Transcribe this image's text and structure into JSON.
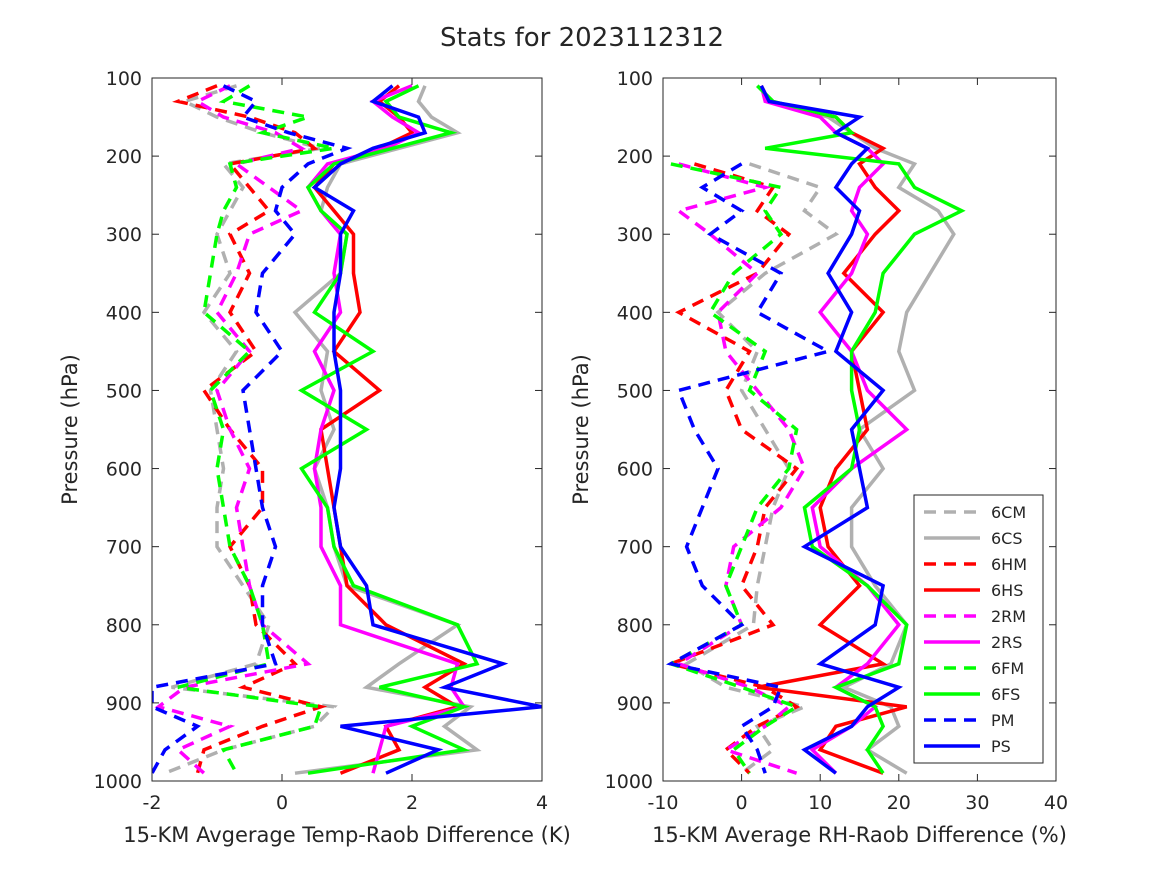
{
  "title": "Stats for 2023112312",
  "series_styles": [
    {
      "name": "6CM",
      "color": "#b0b0b0",
      "dashed": true
    },
    {
      "name": "6CS",
      "color": "#b0b0b0",
      "dashed": false
    },
    {
      "name": "6HM",
      "color": "#ff0000",
      "dashed": true
    },
    {
      "name": "6HS",
      "color": "#ff0000",
      "dashed": false
    },
    {
      "name": "2RM",
      "color": "#ff00ff",
      "dashed": true
    },
    {
      "name": "2RS",
      "color": "#ff00ff",
      "dashed": false
    },
    {
      "name": "6FM",
      "color": "#00ff00",
      "dashed": true
    },
    {
      "name": "6FS",
      "color": "#00ff00",
      "dashed": false
    },
    {
      "name": "PM",
      "color": "#0000ff",
      "dashed": true
    },
    {
      "name": "PS",
      "color": "#0000ff",
      "dashed": false
    }
  ],
  "chart_data": [
    {
      "type": "line",
      "xlabel": "15-KM Avgerage Temp-Raob Difference (K)",
      "ylabel": "Pressure (hPa)",
      "xlim": [
        -2,
        4
      ],
      "ylim": [
        100,
        1000
      ],
      "y_reversed": true,
      "xticks": [
        -2,
        0,
        2,
        4
      ],
      "yticks": [
        100,
        200,
        300,
        400,
        500,
        600,
        700,
        800,
        900,
        1000
      ],
      "grid": false,
      "legend": "none",
      "pressure": [
        110,
        130,
        150,
        170,
        190,
        210,
        240,
        270,
        300,
        350,
        400,
        450,
        500,
        550,
        600,
        650,
        700,
        750,
        800,
        850,
        880,
        905,
        930,
        960,
        990
      ],
      "series": [
        {
          "name": "6CM",
          "values": [
            -0.7,
            -1.5,
            -1.0,
            -0.3,
            0.6,
            -0.9,
            -0.6,
            -0.8,
            -1.0,
            -0.8,
            -1.2,
            -0.7,
            -1.1,
            -1.0,
            -0.9,
            -1.0,
            -1.0,
            -0.6,
            -0.2,
            -0.4,
            -1.7,
            0.8,
            0.5,
            -0.9,
            -1.8
          ]
        },
        {
          "name": "6CS",
          "values": [
            2.2,
            2.1,
            2.3,
            2.7,
            1.8,
            0.9,
            0.7,
            0.6,
            1.0,
            0.9,
            0.2,
            0.7,
            0.6,
            0.8,
            0.5,
            0.7,
            0.8,
            1.0,
            2.7,
            1.8,
            1.3,
            2.9,
            2.5,
            3.0,
            0.2
          ]
        },
        {
          "name": "6HM",
          "values": [
            -1.0,
            -1.6,
            -0.5,
            0.2,
            0.5,
            -0.8,
            -0.5,
            -0.2,
            -0.8,
            -0.5,
            -0.8,
            -0.4,
            -1.2,
            -0.8,
            -0.3,
            -0.3,
            -0.8,
            -0.5,
            -0.4,
            0.2,
            -0.6,
            0.6,
            -0.3,
            -1.2,
            -1.3
          ]
        },
        {
          "name": "6HS",
          "values": [
            1.8,
            1.5,
            1.8,
            2.0,
            1.5,
            0.8,
            0.5,
            0.8,
            1.1,
            1.1,
            1.2,
            0.8,
            1.5,
            0.6,
            0.7,
            0.8,
            0.9,
            1.0,
            1.6,
            2.8,
            2.2,
            2.7,
            1.6,
            1.8,
            0.9
          ]
        },
        {
          "name": "2RM",
          "values": [
            -0.8,
            -1.3,
            -0.9,
            -0.1,
            0.3,
            -0.7,
            -0.2,
            0.3,
            -0.5,
            -0.7,
            -1.0,
            -0.5,
            -1.0,
            -0.8,
            -0.5,
            -0.7,
            -0.6,
            -0.5,
            -0.3,
            0.4,
            -1.5,
            -1.9,
            -0.8,
            -1.6,
            -1.2
          ]
        },
        {
          "name": "2RS",
          "values": [
            2.0,
            1.4,
            1.7,
            2.1,
            1.6,
            0.7,
            0.4,
            0.6,
            0.9,
            0.8,
            0.9,
            0.5,
            0.8,
            0.6,
            0.5,
            0.6,
            0.6,
            0.9,
            0.9,
            2.7,
            2.6,
            2.8,
            1.6,
            1.5,
            1.4
          ]
        },
        {
          "name": "6FM",
          "values": [
            -0.5,
            -0.9,
            0.4,
            -0.3,
            0.8,
            -0.8,
            -0.7,
            -0.9,
            -1.0,
            -1.1,
            -1.2,
            -0.5,
            -1.1,
            -0.9,
            -1.0,
            -0.9,
            -0.8,
            -0.5,
            -0.3,
            -0.2,
            -1.6,
            0.6,
            0.5,
            -0.9,
            -0.7
          ]
        },
        {
          "name": "6FS",
          "values": [
            2.1,
            1.6,
            1.8,
            2.6,
            1.7,
            0.8,
            0.4,
            0.6,
            1.0,
            0.9,
            0.5,
            1.4,
            0.3,
            1.3,
            0.3,
            0.7,
            0.8,
            1.1,
            2.7,
            3.0,
            1.5,
            2.8,
            2.0,
            2.8,
            0.4
          ]
        },
        {
          "name": "PM",
          "values": [
            -0.9,
            -0.4,
            -0.6,
            0.1,
            1.0,
            0.4,
            0.0,
            -0.1,
            0.2,
            -0.3,
            -0.4,
            0.0,
            -0.6,
            -0.5,
            -0.4,
            -0.3,
            -0.1,
            -0.3,
            -0.3,
            -0.1,
            -2.0,
            -2.0,
            -1.3,
            -1.8,
            -2.0
          ]
        },
        {
          "name": "PS",
          "values": [
            1.7,
            1.4,
            2.1,
            2.2,
            1.4,
            0.9,
            0.5,
            1.1,
            0.9,
            0.9,
            0.8,
            0.8,
            0.9,
            0.9,
            0.9,
            0.8,
            0.9,
            1.3,
            1.4,
            3.4,
            2.5,
            4.0,
            0.9,
            2.4,
            1.6
          ]
        }
      ]
    },
    {
      "type": "line",
      "xlabel": "15-KM Average RH-Raob Difference (%)",
      "ylabel": "Pressure (hPa)",
      "xlim": [
        -10,
        40
      ],
      "ylim": [
        100,
        1000
      ],
      "y_reversed": true,
      "xticks": [
        -10,
        0,
        10,
        20,
        30,
        40
      ],
      "yticks": [
        100,
        200,
        300,
        400,
        500,
        600,
        700,
        800,
        900,
        1000
      ],
      "grid": false,
      "legend": "bottom-right",
      "pressure": [
        110,
        130,
        150,
        170,
        190,
        210,
        240,
        270,
        300,
        350,
        400,
        450,
        500,
        550,
        600,
        650,
        700,
        750,
        800,
        850,
        880,
        905,
        930,
        960,
        990
      ],
      "series": [
        {
          "name": "6CM",
          "values": [
            -7.0,
            null,
            null,
            null,
            null,
            1.0,
            10.0,
            8.0,
            12.0,
            3.0,
            -3.0,
            2.0,
            0.0,
            3.0,
            6.0,
            4.0,
            3.0,
            2.0,
            1.5,
            -7.0,
            -2.0,
            8.0,
            2.0,
            4.0,
            0.0
          ]
        },
        {
          "name": "6CS",
          "values": [
            2.0,
            4.0,
            11.0,
            14.0,
            17.0,
            22.0,
            20.0,
            25.0,
            27.0,
            24.0,
            21.0,
            20.0,
            22.0,
            15.0,
            18.0,
            14.0,
            14.0,
            17.0,
            21.0,
            19.0,
            13.0,
            19.0,
            20.0,
            16.0,
            21.0
          ]
        },
        {
          "name": "6HM",
          "values": [
            -8.0,
            null,
            null,
            null,
            null,
            -6.0,
            4.0,
            2.0,
            6.0,
            2.0,
            -8.0,
            1.0,
            -2.0,
            0.0,
            7.0,
            3.0,
            2.0,
            0.0,
            4.0,
            -9.0,
            3.0,
            7.0,
            2.0,
            -2.0,
            1.0
          ]
        },
        {
          "name": "6HS",
          "values": [
            2.5,
            3.5,
            12.0,
            14.0,
            18.0,
            15.0,
            17.0,
            20.0,
            17.0,
            13.0,
            18.0,
            14.0,
            15.0,
            16.0,
            12.0,
            10.0,
            11.0,
            15.0,
            10.0,
            18.0,
            2.0,
            21.0,
            12.0,
            10.0,
            18.0
          ]
        },
        {
          "name": "2RM",
          "values": [
            -7.0,
            null,
            null,
            null,
            null,
            -8.0,
            3.0,
            -8.0,
            -4.0,
            2.0,
            -3.0,
            -2.0,
            2.0,
            6.0,
            8.0,
            5.0,
            -1.0,
            -2.0,
            0.0,
            -8.0,
            1.0,
            6.0,
            3.0,
            -2.0,
            7.0
          ]
        },
        {
          "name": "2RS",
          "values": [
            2.5,
            3.0,
            10.0,
            12.0,
            16.0,
            18.0,
            15.0,
            14.0,
            16.0,
            14.0,
            10.0,
            14.0,
            16.0,
            21.0,
            14.0,
            9.0,
            10.0,
            16.0,
            20.0,
            16.0,
            12.0,
            17.0,
            14.0,
            9.0,
            12.0
          ]
        },
        {
          "name": "6FM",
          "values": [
            -7.0,
            null,
            null,
            null,
            null,
            -9.0,
            5.0,
            3.0,
            5.0,
            -1.0,
            -4.0,
            3.0,
            1.0,
            7.0,
            6.0,
            2.0,
            0.0,
            -2.0,
            0.0,
            -9.0,
            0.0,
            7.0,
            3.0,
            -1.0,
            1.0
          ]
        },
        {
          "name": "6FS",
          "values": [
            2.0,
            4.0,
            12.0,
            14.0,
            3.0,
            20.0,
            22.0,
            28.0,
            22.0,
            18.0,
            17.0,
            14.0,
            14.0,
            15.0,
            14.0,
            8.0,
            9.0,
            16.0,
            21.0,
            20.0,
            12.0,
            17.0,
            18.0,
            16.0,
            18.0
          ]
        },
        {
          "name": "PM",
          "values": [
            -7.5,
            null,
            null,
            null,
            null,
            0.0,
            -5.0,
            0.0,
            -4.0,
            5.0,
            2.0,
            11.0,
            -8.0,
            -6.0,
            -3.0,
            -5.0,
            -7.0,
            -5.0,
            0.0,
            -9.0,
            5.0,
            4.0,
            0.0,
            2.0,
            3.0
          ]
        },
        {
          "name": "PS",
          "values": [
            2.5,
            3.5,
            15.0,
            12.0,
            16.0,
            14.0,
            12.0,
            15.0,
            14.0,
            11.0,
            14.0,
            12.0,
            18.0,
            14.0,
            15.0,
            16.0,
            8.0,
            18.0,
            17.0,
            10.0,
            20.0,
            16.0,
            14.0,
            8.0,
            12.0
          ]
        }
      ]
    }
  ]
}
